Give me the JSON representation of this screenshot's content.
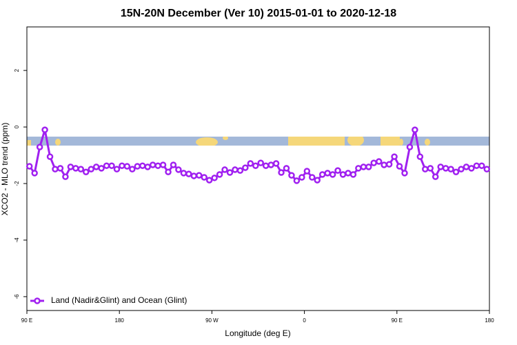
{
  "chart_data": {
    "type": "line",
    "title": "15N-20N December (Ver 10)   2015-01-01 to 2020-12-18",
    "x_label": "Longitude (deg E)",
    "y_label": "XCO2 - MLO trend (ppm)",
    "x": [
      92.5,
      97.5,
      102.5,
      107.5,
      112.5,
      117.5,
      122.5,
      127.5,
      132.5,
      137.5,
      142.5,
      147.5,
      152.5,
      157.5,
      162.5,
      167.5,
      172.5,
      177.5,
      182.5,
      187.5,
      192.5,
      197.5,
      202.5,
      207.5,
      212.5,
      217.5,
      222.5,
      227.5,
      232.5,
      237.5,
      242.5,
      247.5,
      252.5,
      257.5,
      262.5,
      267.5,
      272.5,
      277.5,
      282.5,
      287.5,
      292.5,
      297.5,
      302.5,
      307.5,
      312.5,
      317.5,
      322.5,
      327.5,
      332.5,
      337.5,
      342.5,
      347.5,
      352.5,
      357.5,
      362.5,
      367.5,
      372.5,
      377.5,
      382.5,
      387.5,
      392.5,
      397.5,
      402.5,
      407.5,
      412.5,
      417.5,
      422.5,
      427.5,
      432.5,
      437.5,
      442.5,
      447.5,
      452.5,
      457.5,
      462.5,
      467.5,
      472.5,
      477.5,
      482.5,
      487.5,
      492.5,
      497.5,
      502.5,
      507.5,
      512.5,
      517.5,
      522.5,
      527.5,
      532.5,
      537.5
    ],
    "series": [
      {
        "name": "Land (Nadir&Glint) and Ocean (Glint)",
        "color": "#a020f0",
        "values": [
          -1.39,
          -1.63,
          -0.71,
          -0.1,
          -1.05,
          -1.49,
          -1.46,
          -1.76,
          -1.41,
          -1.46,
          -1.49,
          -1.59,
          -1.49,
          -1.41,
          -1.46,
          -1.37,
          -1.37,
          -1.49,
          -1.37,
          -1.39,
          -1.49,
          -1.39,
          -1.37,
          -1.41,
          -1.34,
          -1.37,
          -1.34,
          -1.59,
          -1.34,
          -1.51,
          -1.63,
          -1.66,
          -1.73,
          -1.71,
          -1.78,
          -1.88,
          -1.8,
          -1.68,
          -1.51,
          -1.61,
          -1.51,
          -1.54,
          -1.44,
          -1.29,
          -1.37,
          -1.27,
          -1.37,
          -1.34,
          -1.29,
          -1.61,
          -1.46,
          -1.71,
          -1.9,
          -1.78,
          -1.56,
          -1.78,
          -1.88,
          -1.68,
          -1.63,
          -1.68,
          -1.54,
          -1.68,
          -1.63,
          -1.68,
          -1.46,
          -1.41,
          -1.41,
          -1.27,
          -1.22,
          -1.34,
          -1.32,
          -1.05,
          -1.39,
          -1.63,
          -0.71,
          -0.1,
          -1.05,
          -1.49,
          -1.46,
          -1.76,
          -1.41,
          -1.46,
          -1.49,
          -1.59,
          -1.49,
          -1.41,
          -1.46,
          -1.37,
          -1.37,
          -1.49
        ]
      }
    ],
    "xlim": [
      90,
      540
    ],
    "xticks": [
      {
        "value": 90,
        "label": "90 E"
      },
      180,
      {
        "value": 270,
        "label": "90 W"
      },
      {
        "value": 360,
        "label": "0"
      },
      {
        "value": 450,
        "label": "90 E"
      },
      {
        "value": 540,
        "label": "180"
      }
    ],
    "ylim": [
      -6.49,
      3.54
    ],
    "yticks": [
      2,
      0,
      -2,
      -4,
      -6
    ],
    "legend": "bottom-left"
  }
}
